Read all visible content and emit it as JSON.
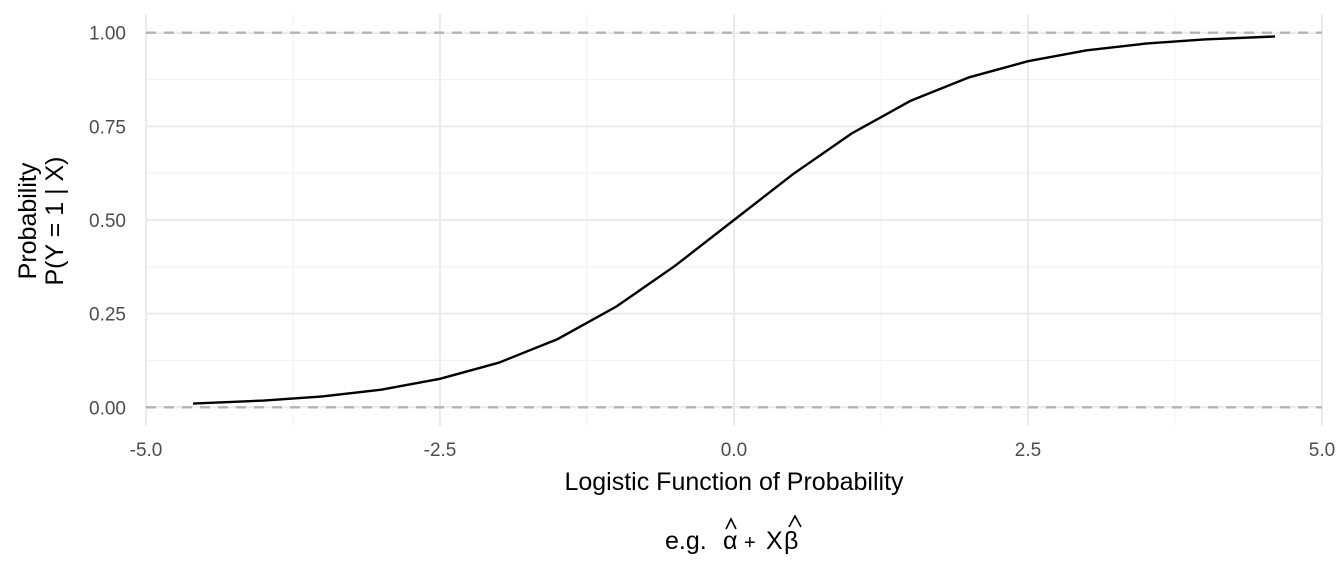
{
  "chart_data": {
    "type": "line",
    "title": "",
    "xlabel": "Logistic Function of Probability",
    "xlabel_line2": {
      "prefix": "e.g.",
      "alpha": "α",
      "plus": "+",
      "x": "X",
      "beta": "β",
      "hat": "^"
    },
    "ylabel": [
      "Probability",
      "P(Y = 1 | X)"
    ],
    "xlim": [
      -5.0,
      5.0
    ],
    "ylim": [
      -0.05,
      1.05
    ],
    "x_ticks": [
      -5.0,
      -2.5,
      0.0,
      2.5,
      5.0
    ],
    "x_tick_labels": [
      "-5.0",
      "-2.5",
      "0.0",
      "2.5",
      "5.0"
    ],
    "y_ticks": [
      0.0,
      0.25,
      0.5,
      0.75,
      1.0
    ],
    "y_tick_labels": [
      "0.00",
      "0.25",
      "0.50",
      "0.75",
      "1.00"
    ],
    "grid": true,
    "reference_lines_y": [
      0.0,
      1.0
    ],
    "series": [
      {
        "x": [
          -4.6,
          -4.0,
          -3.5,
          -3.0,
          -2.5,
          -2.0,
          -1.5,
          -1.0,
          -0.5,
          0.0,
          0.5,
          1.0,
          1.5,
          2.0,
          2.5,
          3.0,
          3.5,
          4.0,
          4.6
        ],
        "y": [
          0.01,
          0.018,
          0.029,
          0.047,
          0.076,
          0.119,
          0.182,
          0.269,
          0.378,
          0.5,
          0.622,
          0.731,
          0.818,
          0.881,
          0.924,
          0.953,
          0.971,
          0.982,
          0.99
        ]
      }
    ],
    "colors": {
      "curve": "#000000",
      "reference_line": "#b3b3b3",
      "grid_major": "#ebebeb",
      "grid_minor": "#f2f2f2",
      "tick_text": "#4d4d4d"
    }
  }
}
